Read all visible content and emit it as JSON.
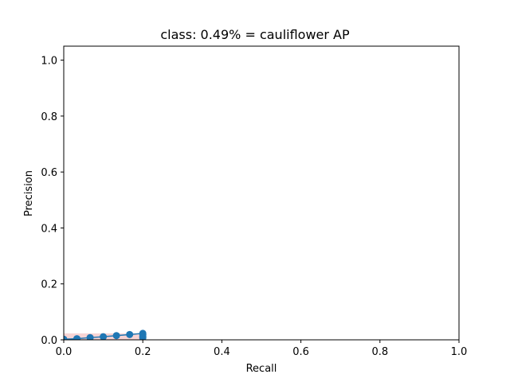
{
  "chart_data": {
    "type": "line",
    "title": "class: 0.49% = cauliflower AP",
    "xlabel": "Recall",
    "ylabel": "Precision",
    "xlim": [
      0.0,
      1.0
    ],
    "ylim": [
      0.0,
      1.05
    ],
    "xticks": [
      0.0,
      0.2,
      0.4,
      0.6,
      0.8,
      1.0
    ],
    "yticks": [
      0.0,
      0.2,
      0.4,
      0.6,
      0.8,
      1.0
    ],
    "xtick_labels": [
      "0.0",
      "0.2",
      "0.4",
      "0.6",
      "0.8",
      "1.0"
    ],
    "ytick_labels": [
      "0.0",
      "0.2",
      "0.4",
      "0.6",
      "0.8",
      "1.0"
    ],
    "grid": false,
    "series": [
      {
        "color": "#1f77b4",
        "marker": "circle",
        "x": [
          0.0,
          0.0333,
          0.0667,
          0.1,
          0.1333,
          0.1667,
          0.2,
          0.2,
          0.2,
          0.2
        ],
        "y": [
          0.002,
          0.004,
          0.008,
          0.011,
          0.015,
          0.019,
          0.023,
          0.018,
          0.012,
          0.008
        ]
      }
    ],
    "area": {
      "color": "#d62728",
      "opacity": 0.2,
      "x": [
        0.0,
        0.2,
        0.2,
        0.0
      ],
      "y": [
        0.023,
        0.023,
        0.0,
        0.0
      ]
    }
  }
}
